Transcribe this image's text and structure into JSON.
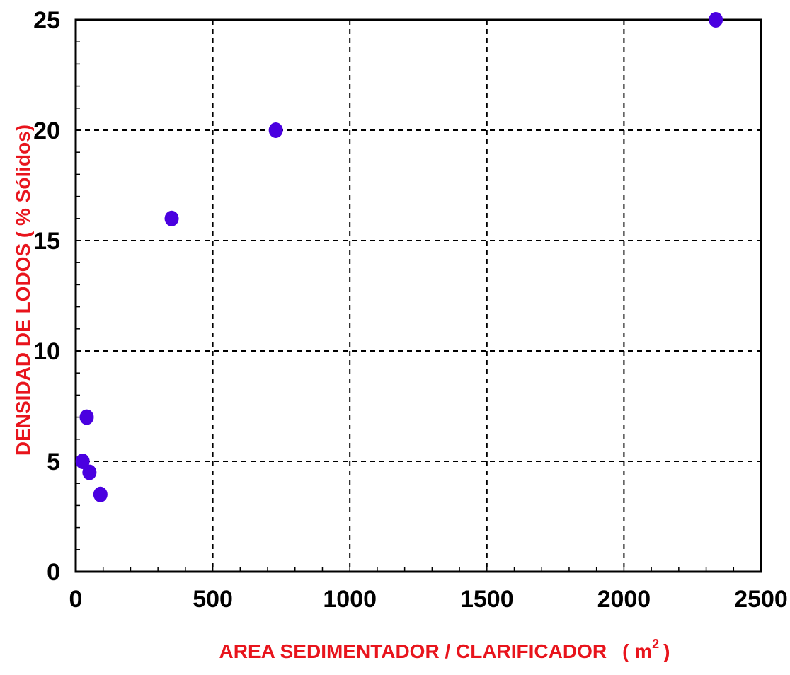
{
  "chart_data": {
    "type": "scatter",
    "title": "",
    "xlabel": "AREA SEDIMENTADOR / CLARIFICADOR",
    "xlabel_unit": "( m",
    "xlabel_unit_sup": "2",
    "xlabel_unit_close": ")",
    "ylabel": "DENSIDAD DE LODOS ( % Sólidos)",
    "xlim": [
      0,
      2500
    ],
    "ylim": [
      0,
      25
    ],
    "xticks": [
      0,
      500,
      1000,
      1500,
      2000,
      2500
    ],
    "yticks": [
      0,
      5,
      10,
      15,
      20,
      25
    ],
    "xtick_labels": [
      "0",
      "500",
      "1000",
      "1500",
      "2000",
      "2500"
    ],
    "ytick_labels": [
      "0",
      "5",
      "10",
      "15",
      "20",
      "25"
    ],
    "grid": true,
    "legend": "none",
    "series": [
      {
        "x": [
          25,
          40,
          50,
          90,
          350,
          730,
          2335
        ],
        "y": [
          5.0,
          7.0,
          4.5,
          3.5,
          16.0,
          20.0,
          25.0
        ]
      }
    ]
  },
  "colors": {
    "marker": "#4a00e0",
    "axis_title": "#e8141c",
    "grid": "#000000",
    "tick_text": "#000000"
  }
}
